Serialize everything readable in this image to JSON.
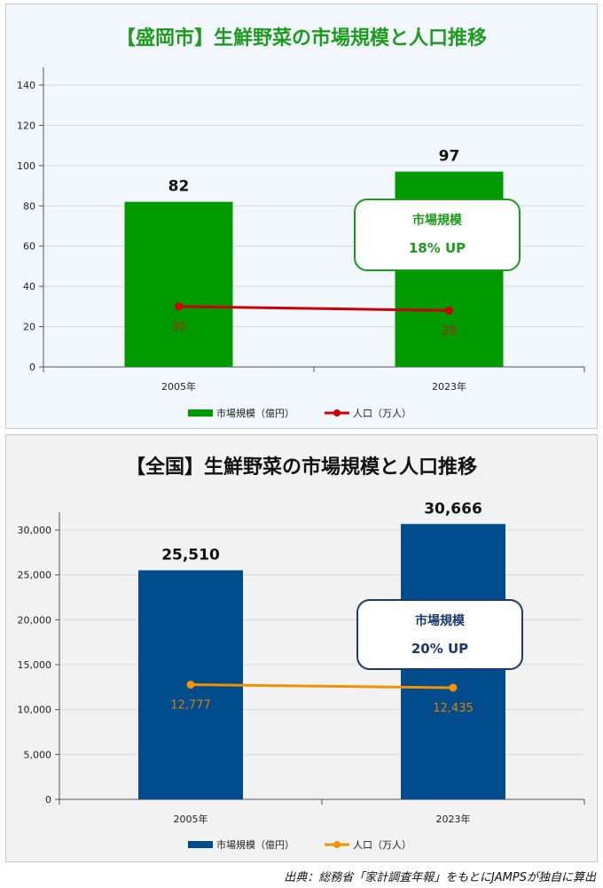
{
  "source_note": "出典：総務省「家計調査年報」をもとにJAMPSが独自に算出",
  "chart_data": [
    {
      "type": "bar",
      "title": "【盛岡市】生鮮野菜の市場規模と人口推移",
      "categories": [
        "2005年",
        "2023年"
      ],
      "ylim": [
        0,
        140
      ],
      "yticks": [
        0,
        20,
        40,
        60,
        80,
        100,
        120,
        140
      ],
      "ytick_labels": [
        "0",
        "20",
        "40",
        "60",
        "80",
        "100",
        "120",
        "140"
      ],
      "grid": true,
      "legend_position": "bottom",
      "series": [
        {
          "name": "市場規模（億円）",
          "kind": "bar",
          "color": "#009900",
          "values": [
            82,
            97
          ],
          "labels": [
            "82",
            "97"
          ]
        },
        {
          "name": "人口（万人）",
          "kind": "line",
          "color": "#cc0000",
          "label_color": "#b22222",
          "values": [
            30,
            28
          ],
          "labels": [
            "30",
            "28"
          ]
        }
      ],
      "annotation": {
        "line1": "市場規模",
        "line2": "18% UP",
        "color": "#1e9a1e"
      }
    },
    {
      "type": "bar",
      "title": "【全国】生鮮野菜の市場規模と人口推移",
      "categories": [
        "2005年",
        "2023年"
      ],
      "ylim": [
        0,
        30000
      ],
      "yticks": [
        0,
        5000,
        10000,
        15000,
        20000,
        25000,
        30000
      ],
      "ytick_labels": [
        "0",
        "5,000",
        "10,000",
        "15,000",
        "20,000",
        "25,000",
        "30,000"
      ],
      "grid": true,
      "legend_position": "bottom",
      "series": [
        {
          "name": "市場規模（億円）",
          "kind": "bar",
          "color": "#004c8c",
          "values": [
            25510,
            30666
          ],
          "labels": [
            "25,510",
            "30,666"
          ]
        },
        {
          "name": "人口（万人）",
          "kind": "line",
          "color": "#f39200",
          "label_color": "#e08000",
          "values": [
            12777,
            12435
          ],
          "labels": [
            "12,777",
            "12,435"
          ]
        }
      ],
      "annotation": {
        "line1": "市場規模",
        "line2": "20% UP",
        "color": "#1a3a6b"
      }
    }
  ]
}
